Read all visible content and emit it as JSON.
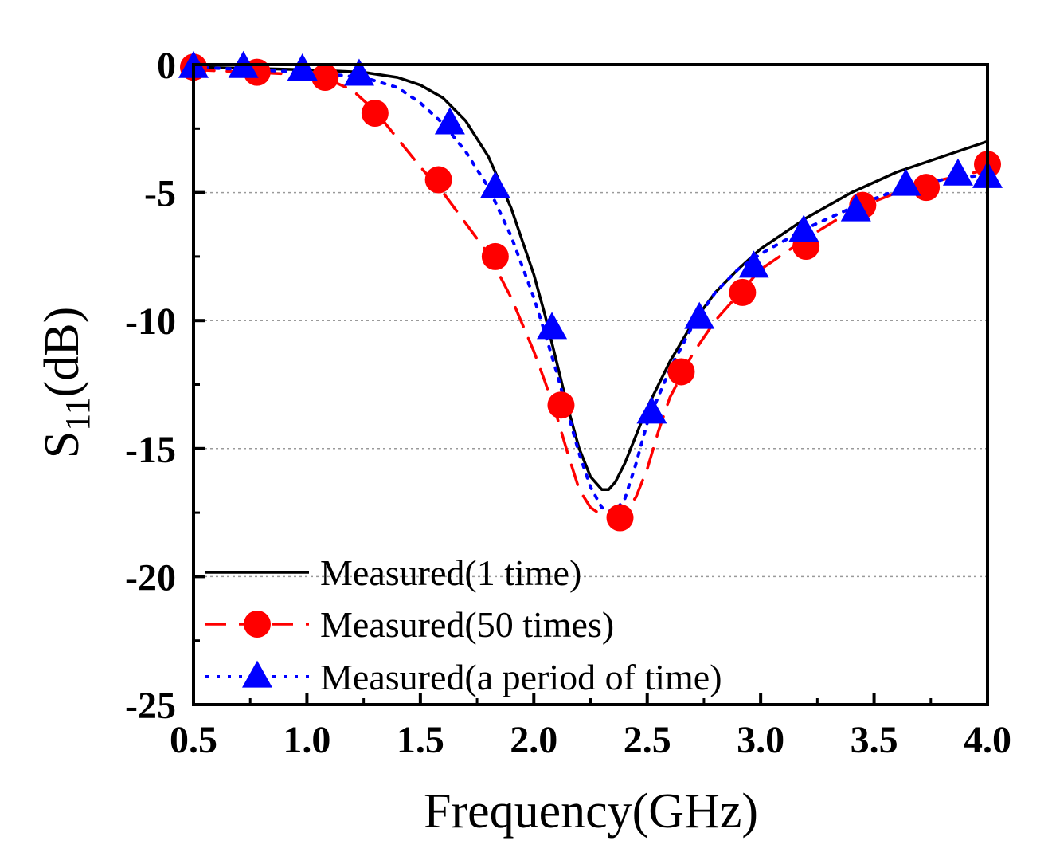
{
  "chart_data": {
    "type": "line",
    "title": "",
    "xlabel": "Frequency(GHz)",
    "ylabel_main": "S",
    "ylabel_sub": "11",
    "ylabel_unit": "(dB)",
    "xlim": [
      0.5,
      4.0
    ],
    "ylim": [
      -25,
      0
    ],
    "x_ticks": [
      0.5,
      1.0,
      1.5,
      2.0,
      2.5,
      3.0,
      3.5,
      4.0
    ],
    "x_tick_labels": [
      "0.5",
      "1.0",
      "1.5",
      "2.0",
      "2.5",
      "3.0",
      "3.5",
      "4.0"
    ],
    "y_ticks": [
      0,
      -5,
      -10,
      -15,
      -20,
      -25
    ],
    "y_tick_labels": [
      "0",
      "-5",
      "-10",
      "-15",
      "-20",
      "-25"
    ],
    "grid": "horizontal dotted",
    "legend_position": "bottom-left",
    "series": [
      {
        "name": "Measured(1 time)",
        "color": "#000000",
        "style": "solid",
        "marker": "none",
        "x": [
          0.5,
          0.75,
          1.0,
          1.25,
          1.4,
          1.5,
          1.6,
          1.7,
          1.8,
          1.9,
          2.0,
          2.05,
          2.1,
          2.15,
          2.2,
          2.25,
          2.3,
          2.33,
          2.36,
          2.4,
          2.45,
          2.5,
          2.6,
          2.7,
          2.8,
          2.9,
          3.0,
          3.2,
          3.4,
          3.6,
          3.8,
          4.0
        ],
        "y": [
          -0.1,
          -0.15,
          -0.2,
          -0.3,
          -0.5,
          -0.8,
          -1.3,
          -2.2,
          -3.6,
          -5.6,
          -8.2,
          -9.8,
          -11.6,
          -13.4,
          -15.0,
          -16.1,
          -16.6,
          -16.6,
          -16.3,
          -15.6,
          -14.5,
          -13.4,
          -11.6,
          -10.1,
          -8.9,
          -8.0,
          -7.2,
          -6.0,
          -5.0,
          -4.2,
          -3.6,
          -3.0
        ]
      },
      {
        "name": "Measured(50 times)",
        "color": "#ff0000",
        "style": "dashed",
        "marker": "circle",
        "x": [
          0.5,
          0.75,
          1.0,
          1.1,
          1.2,
          1.3,
          1.4,
          1.5,
          1.6,
          1.7,
          1.8,
          1.9,
          2.0,
          2.05,
          2.1,
          2.15,
          2.2,
          2.25,
          2.3,
          2.35,
          2.4,
          2.45,
          2.5,
          2.55,
          2.6,
          2.7,
          2.8,
          2.9,
          3.0,
          3.2,
          3.4,
          3.6,
          3.8,
          4.0
        ],
        "y": [
          -0.2,
          -0.3,
          -0.4,
          -0.6,
          -1.0,
          -1.8,
          -2.9,
          -4.0,
          -5.0,
          -6.2,
          -7.4,
          -9.1,
          -11.2,
          -12.4,
          -13.7,
          -15.2,
          -16.6,
          -17.3,
          -17.6,
          -17.6,
          -17.5,
          -16.9,
          -15.8,
          -14.3,
          -13.0,
          -11.3,
          -10.0,
          -9.0,
          -8.0,
          -6.8,
          -5.7,
          -5.0,
          -4.5,
          -4.1
        ]
      },
      {
        "name": "Measured(a period of time)",
        "color": "#0000ff",
        "style": "dotted",
        "marker": "triangle",
        "x": [
          0.5,
          0.75,
          1.0,
          1.25,
          1.4,
          1.5,
          1.6,
          1.7,
          1.8,
          1.9,
          2.0,
          2.05,
          2.1,
          2.15,
          2.2,
          2.25,
          2.3,
          2.35,
          2.4,
          2.45,
          2.5,
          2.6,
          2.7,
          2.8,
          2.9,
          3.0,
          3.2,
          3.4,
          3.6,
          3.8,
          4.0
        ],
        "y": [
          -0.1,
          -0.2,
          -0.3,
          -0.5,
          -0.9,
          -1.5,
          -2.3,
          -3.4,
          -4.8,
          -6.7,
          -9.1,
          -10.5,
          -12.0,
          -13.6,
          -15.2,
          -16.5,
          -17.3,
          -17.5,
          -17.0,
          -15.6,
          -14.0,
          -11.9,
          -10.2,
          -8.9,
          -8.0,
          -7.4,
          -6.4,
          -5.6,
          -4.9,
          -4.5,
          -4.3
        ]
      }
    ],
    "markers": [
      {
        "series": "Measured(50 times)",
        "x": [
          0.5,
          0.78,
          1.08,
          1.3,
          1.58,
          1.83,
          2.12,
          2.38,
          2.65,
          2.92,
          3.2,
          3.45,
          3.73,
          4.0
        ],
        "y": [
          -0.1,
          -0.3,
          -0.5,
          -1.9,
          -4.5,
          -7.5,
          -13.3,
          -17.7,
          -12.0,
          -8.9,
          -7.1,
          -5.5,
          -4.8,
          -3.9
        ]
      },
      {
        "series": "Measured(a period of time)",
        "x": [
          0.5,
          0.72,
          0.98,
          1.23,
          1.63,
          1.83,
          2.08,
          2.52,
          2.73,
          2.97,
          3.19,
          3.42,
          3.64,
          3.87,
          4.0
        ],
        "y": [
          -0.1,
          -0.1,
          -0.2,
          -0.4,
          -2.3,
          -4.8,
          -10.3,
          -13.6,
          -9.9,
          -7.9,
          -6.5,
          -5.7,
          -4.7,
          -4.3,
          -4.4
        ]
      }
    ]
  }
}
